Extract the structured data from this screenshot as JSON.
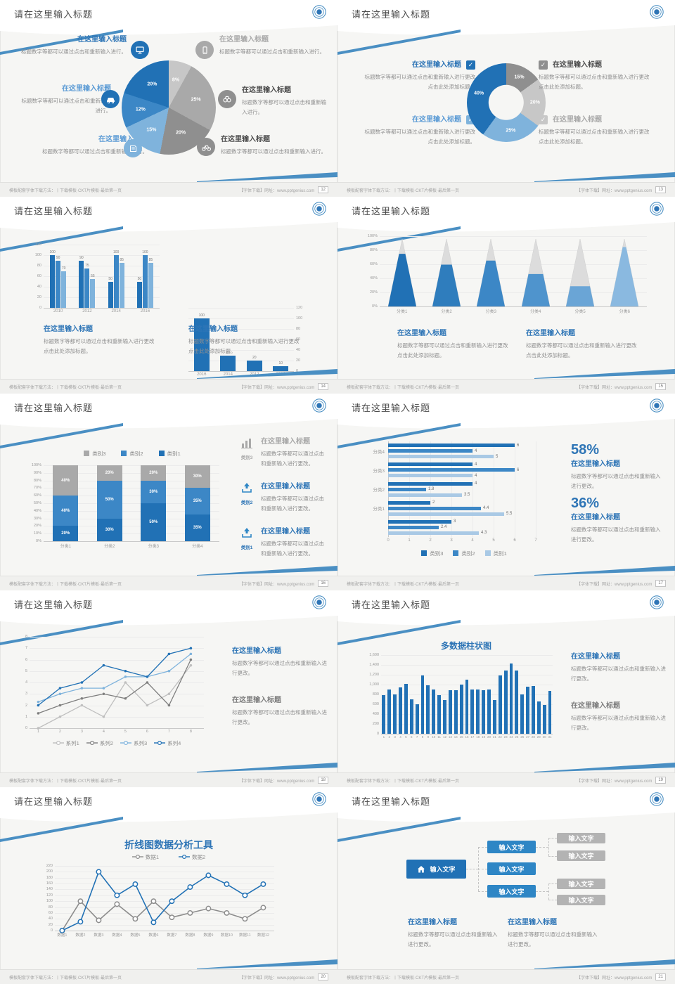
{
  "common": {
    "slide_title": "请在这里输入标题",
    "heading": "在这里输入标题",
    "body_s1": "标题数字等都可以通过点击和重新输入进行。",
    "body_long": "标题数字等都可以通过点击和重新输入进行更改 点击此处添加标题。",
    "body_mid": "标题数字等都可以通过点击和重新输入进行更改。",
    "footer_left": "模板配套字体下载方法：丨下载模板·CKT片模板·最后第一页",
    "footer_right": "【字体下载】网址：www.pptgenius.com",
    "pages": [
      "12",
      "13",
      "14",
      "15",
      "16",
      "17",
      "18",
      "19",
      "20",
      "21"
    ]
  },
  "colors": {
    "blue_dark": "#2171b5",
    "blue_mid": "#3c87c6",
    "blue_light": "#7fb3dc",
    "blue_pale": "#a9c9e5",
    "gray_dark": "#8f8f8f",
    "gray_mid": "#a9a9a9",
    "gray_light": "#c7c7c7"
  },
  "slide6": {
    "stat1": "58%",
    "stat2": "36%"
  },
  "diagram": {
    "root": "输入文字",
    "mid1": "输入文字",
    "mid2": "输入文字",
    "mid3": "输入文字",
    "leaf1": "输入文字",
    "leaf2": "输入文字",
    "leaf3": "输入文字",
    "leaf4": "输入文字"
  },
  "chart_data": [
    {
      "type": "pie",
      "slices": [
        {
          "label": "8%",
          "value": 8,
          "color": "#c7c7c7"
        },
        {
          "label": "25%",
          "value": 25,
          "color": "#a9a9a9"
        },
        {
          "label": "20%",
          "value": 20,
          "color": "#8f8f8f"
        },
        {
          "label": "15%",
          "value": 15,
          "color": "#7fb3dc"
        },
        {
          "label": "12%",
          "value": 12,
          "color": "#3c87c6"
        },
        {
          "label": "20%",
          "value": 20,
          "color": "#2171b5"
        }
      ]
    },
    {
      "type": "pie",
      "donut": true,
      "slices": [
        {
          "label": "15%",
          "value": 15,
          "color": "#8f8f8f"
        },
        {
          "label": "20%",
          "value": 20,
          "color": "#c7c7c7"
        },
        {
          "label": "25%",
          "value": 25,
          "color": "#7fb3dc"
        },
        {
          "label": "40%",
          "value": 40,
          "color": "#2171b5"
        }
      ]
    },
    {
      "type": "bar",
      "categories": [
        "2010",
        "2012",
        "2014",
        "2016"
      ],
      "series": [
        {
          "color": "#2171b5",
          "values": [
            100,
            90,
            50,
            50
          ]
        },
        {
          "color": "#3c87c6",
          "values": [
            90,
            75,
            100,
            100
          ]
        },
        {
          "color": "#7fb3dc",
          "values": [
            70,
            55,
            85,
            85
          ]
        }
      ],
      "ylim": [
        0,
        120
      ],
      "yticks": [
        0,
        20,
        40,
        60,
        80,
        100,
        120
      ],
      "axis": "left",
      "value_labels": true
    },
    {
      "type": "bar",
      "categories": [
        "2016",
        "2014",
        "2012",
        "2010"
      ],
      "series": [
        {
          "color": "#2171b5",
          "values": [
            100,
            30,
            20,
            10
          ]
        }
      ],
      "ylim": [
        0,
        120
      ],
      "yticks": [
        0,
        20,
        40,
        60,
        80,
        100,
        120
      ],
      "axis": "right",
      "value_labels": true
    },
    {
      "type": "pyramid",
      "categories": [
        "分类1",
        "分类2",
        "分类3",
        "分类4",
        "分类5",
        "分类6"
      ],
      "fill": [
        0.78,
        0.62,
        0.68,
        0.48,
        0.3,
        0.88
      ],
      "colors": [
        "#2171b5",
        "#2f7dbd",
        "#3c87c6",
        "#4f94cd",
        "#6aa5d6",
        "#8ab9e0"
      ],
      "cap_color": "#dcdcdc",
      "yticks": [
        "0%",
        "20%",
        "40%",
        "60%",
        "80%",
        "100%"
      ]
    },
    {
      "type": "stacked",
      "categories": [
        "分类1",
        "分类2",
        "分类3",
        "分类4"
      ],
      "series": [
        {
          "name": "类别1",
          "color": "#2171b5",
          "values": [
            20,
            30,
            50,
            35
          ]
        },
        {
          "name": "类别2",
          "color": "#3c87c6",
          "values": [
            40,
            50,
            30,
            35
          ]
        },
        {
          "name": "类别3",
          "color": "#a9a9a9",
          "values": [
            40,
            20,
            20,
            30
          ]
        }
      ],
      "legend": [
        {
          "name": "类别3",
          "color": "#a9a9a9"
        },
        {
          "name": "类别2",
          "color": "#3c87c6"
        },
        {
          "name": "类别1",
          "color": "#2171b5"
        }
      ],
      "yticks": [
        "0%",
        "10%",
        "20%",
        "30%",
        "40%",
        "50%",
        "60%",
        "70%",
        "80%",
        "90%",
        "100%"
      ]
    },
    {
      "type": "hbar",
      "groups": [
        {
          "label": "分类4",
          "values": [
            6,
            4,
            5
          ]
        },
        {
          "label": "分类3",
          "values": [
            4,
            6,
            4
          ]
        },
        {
          "label": "分类2",
          "values": [
            4,
            1.8,
            3.5
          ]
        },
        {
          "label": "分类1",
          "values": [
            2,
            4.4,
            5.5
          ]
        },
        {
          "label": "",
          "values": [
            3,
            2.4,
            4.3
          ]
        }
      ],
      "series_colors": [
        "#2171b5",
        "#3c87c6",
        "#a9c9e5"
      ],
      "legend": [
        {
          "name": "类别3",
          "color": "#2171b5"
        },
        {
          "name": "类别2",
          "color": "#3c87c6"
        },
        {
          "name": "类别1",
          "color": "#a9c9e5"
        }
      ],
      "xlim": [
        0,
        7
      ],
      "xticks": [
        0,
        1,
        2,
        3,
        4,
        5,
        6,
        7
      ]
    },
    {
      "type": "line",
      "x": [
        "1",
        "2",
        "3",
        "4",
        "5",
        "6",
        "7",
        "8"
      ],
      "ylim": [
        0,
        8
      ],
      "yticks": [
        0,
        1,
        2,
        3,
        4,
        5,
        6,
        7,
        8
      ],
      "series": [
        {
          "name": "系列1",
          "color": "#bfbfbf",
          "values": [
            0,
            1,
            2,
            1,
            4,
            2,
            3,
            5.5
          ]
        },
        {
          "name": "系列2",
          "color": "#7f7f7f",
          "values": [
            1.3,
            2,
            2.6,
            3,
            2.6,
            4,
            2,
            6
          ]
        },
        {
          "name": "系列3",
          "color": "#7fb3dc",
          "values": [
            2.3,
            3,
            3.5,
            3.5,
            4.5,
            4.5,
            5,
            6.5
          ]
        },
        {
          "name": "系列4",
          "color": "#2171b5",
          "values": [
            2,
            3.5,
            4,
            5.5,
            5,
            4.5,
            6.5,
            7
          ]
        }
      ]
    },
    {
      "type": "column",
      "title": "多数据柱状图",
      "color": "#2171b5",
      "x": [
        "1",
        "2",
        "3",
        "4",
        "5",
        "6",
        "7",
        "8",
        "9",
        "10",
        "11",
        "12",
        "13",
        "14",
        "15",
        "16",
        "17",
        "18",
        "19",
        "20",
        "21",
        "22",
        "23",
        "24",
        "25",
        "26",
        "27",
        "28",
        "29",
        "30",
        "31"
      ],
      "values": [
        790,
        900,
        800,
        950,
        1020,
        700,
        600,
        1190,
        990,
        900,
        780,
        690,
        890,
        890,
        1000,
        1100,
        900,
        900,
        880,
        900,
        690,
        1190,
        1290,
        1430,
        1290,
        800,
        960,
        970,
        660,
        590,
        870
      ],
      "ylim": [
        0,
        1600
      ],
      "ytick_labels": [
        "0",
        "200",
        "400",
        "600",
        "800",
        "1,000",
        "1,200",
        "1,400",
        "1,600"
      ]
    },
    {
      "type": "line",
      "title": "折线图数据分析工具",
      "big_markers": true,
      "x": [
        "数据1",
        "数据2",
        "数据3",
        "数据4",
        "数据5",
        "数据6",
        "数据7",
        "数据8",
        "数据9",
        "数据10",
        "数据11",
        "数据12"
      ],
      "ylim": [
        0,
        220
      ],
      "yticks": [
        0,
        20,
        40,
        60,
        80,
        100,
        120,
        140,
        160,
        180,
        200,
        220
      ],
      "series": [
        {
          "name": "数据1",
          "color": "#8c8c8c",
          "values": [
            0,
            100,
            35,
            90,
            40,
            100,
            45,
            60,
            75,
            60,
            40,
            78
          ]
        },
        {
          "name": "数据2",
          "color": "#2171b5",
          "values": [
            0,
            30,
            200,
            120,
            158,
            28,
            100,
            148,
            188,
            158,
            120,
            158
          ]
        }
      ]
    }
  ]
}
